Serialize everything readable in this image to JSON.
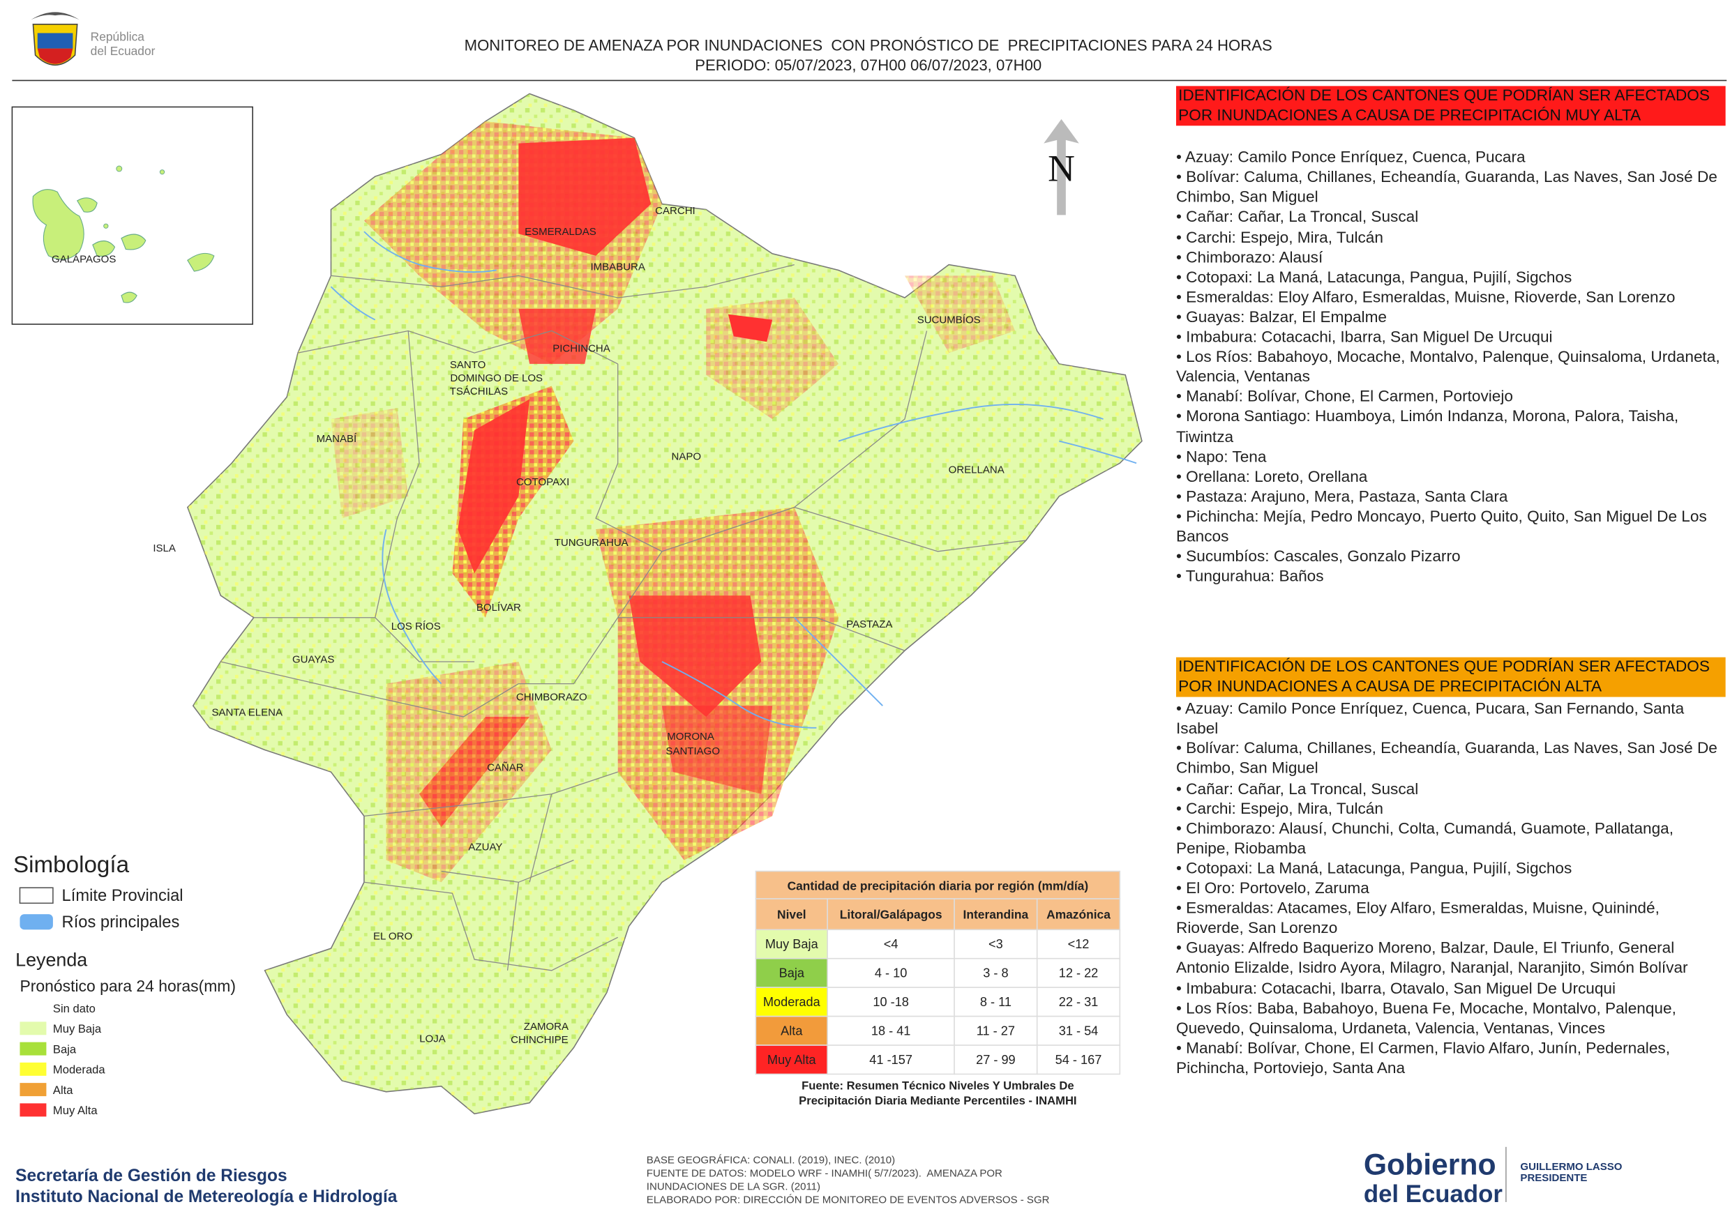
{
  "header": {
    "logo_lines": [
      "República",
      "del Ecuador"
    ],
    "title": "MONITOREO DE AMENAZA POR INUNDACIONES  CON PRONÓSTICO DE  PRECIPITACIONES PARA 24 HORAS",
    "subtitle": "PERIODO: 05/07/2023, 07H00 06/07/2023, 07H00"
  },
  "map": {
    "north": "N",
    "inset_label": "GALÁPAGOS",
    "provinces": {
      "carchi": "CARCHI",
      "esmeraldas": "ESMERALDAS",
      "imbabura": "IMBABURA",
      "sucumbios": "SUCUMBÍOS",
      "pichincha": "PICHINCHA",
      "santo_domingo": [
        "SANTO",
        "DOMINGO DE LOS",
        "TSÁCHILAS"
      ],
      "manabi": "MANABÍ",
      "napo": "NAPO",
      "orellana": "ORELLANA",
      "cotopaxi": "COTOPAXI",
      "isla": "ISLA",
      "tungurahua": "TUNGURAHUA",
      "bolivar": "BOLÍVAR",
      "los_rios": "LOS RÍOS",
      "pastaza": "PASTAZA",
      "guayas": "GUAYAS",
      "chimborazo": "CHIMBORAZO",
      "santa_elena": "SANTA ELENA",
      "morona_santiago": [
        "MORONA",
        "SANTIAGO"
      ],
      "canar": "CAÑAR",
      "azuay": "AZUAY",
      "el_oro": "EL ORO",
      "loja": "LOJA",
      "zamora_chinchipe": [
        "ZAMORA",
        "CHINCHIPE"
      ]
    }
  },
  "legend": {
    "simbologia_title": "Simbología",
    "simbologia_items": [
      "Límite Provincial",
      "Ríos principales"
    ],
    "leyenda_title": "Leyenda",
    "leyenda_subtitle": "Pronóstico para 24 horas(mm)",
    "classes": [
      {
        "label": "Sin dato",
        "color": "#ffffff"
      },
      {
        "label": "Muy Baja",
        "color": "#e3fbad"
      },
      {
        "label": "Baja",
        "color": "#a8e03a"
      },
      {
        "label": "Moderada",
        "color": "#ffff33"
      },
      {
        "label": "Alta",
        "color": "#f0a035"
      },
      {
        "label": "Muy Alta",
        "color": "#ff3131"
      }
    ]
  },
  "table": {
    "title": "Cantidad de precipitación diaria por región (mm/día)",
    "headers": [
      "Nivel",
      "Litoral/Galápagos",
      "Interandina",
      "Amazónica"
    ],
    "rows": [
      {
        "level": "Muy Baja",
        "color": "#e3fbad",
        "values": [
          "<4",
          "<3",
          "<12"
        ]
      },
      {
        "level": "Baja",
        "color": "#8fcf4a",
        "values": [
          "4 - 10",
          "3 - 8",
          "12 - 22"
        ]
      },
      {
        "level": "Moderada",
        "color": "#ffff00",
        "values": [
          "10 -18",
          "8 - 11",
          "22 - 31"
        ]
      },
      {
        "level": "Alta",
        "color": "#f29b3b",
        "values": [
          "18 - 41",
          "11 - 27",
          "31 - 54"
        ]
      },
      {
        "level": "Muy Alta",
        "color": "#ff2424",
        "values": [
          "41 -157",
          "27 - 99",
          "54 - 167"
        ]
      }
    ],
    "source": [
      "Fuente: Resumen Técnico Niveles Y Umbrales De",
      "Precipitación Diaria Mediante Percentiles - INAMHI"
    ]
  },
  "very_high": {
    "heading": "IDENTIFICACIÓN DE LOS CANTONES QUE PODRÍAN SER AFECTADOS POR INUNDACIONES  A CAUSA DE PRECIPITACIÓN MUY ALTA",
    "items": [
      "• Azuay: Camilo Ponce Enríquez, Cuenca, Pucara",
      "• Bolívar: Caluma, Chillanes, Echeandía, Guaranda, Las Naves, San José De Chimbo, San Miguel",
      "• Cañar: Cañar, La Troncal, Suscal",
      "• Carchi: Espejo, Mira, Tulcán",
      "• Chimborazo: Alausí",
      "• Cotopaxi: La Maná, Latacunga, Pangua, Pujilí, Sigchos",
      "• Esmeraldas: Eloy Alfaro, Esmeraldas, Muisne, Rioverde, San Lorenzo",
      "• Guayas: Balzar, El Empalme",
      "• Imbabura: Cotacachi, Ibarra, San Miguel De Urcuqui",
      "• Los Ríos: Babahoyo, Mocache, Montalvo, Palenque, Quinsaloma, Urdaneta, Valencia, Ventanas",
      "• Manabí: Bolívar, Chone, El Carmen, Portoviejo",
      "• Morona Santiago: Huamboya, Limón Indanza, Morona, Palora, Taisha, Tiwintza",
      "• Napo: Tena",
      "• Orellana: Loreto, Orellana",
      "• Pastaza: Arajuno, Mera, Pastaza, Santa Clara",
      "• Pichincha: Mejía, Pedro Moncayo, Puerto Quito, Quito, San Miguel De Los Bancos",
      "• Sucumbíos: Cascales, Gonzalo Pizarro",
      "• Tungurahua: Baños"
    ]
  },
  "high": {
    "heading": "IDENTIFICACIÓN DE LOS CANTONES QUE  PODRÍAN SER AFECTADOS POR INUNDACIONES  A CAUSA DE PRECIPITACIÓN ALTA",
    "items": [
      "• Azuay: Camilo Ponce Enríquez, Cuenca, Pucara, San Fernando, Santa Isabel",
      "• Bolívar: Caluma, Chillanes, Echeandía, Guaranda, Las Naves, San José De Chimbo, San Miguel",
      "• Cañar: Cañar, La Troncal, Suscal",
      "• Carchi: Espejo, Mira, Tulcán",
      "• Chimborazo: Alausí, Chunchi, Colta, Cumandá, Guamote, Pallatanga, Penipe, Riobamba",
      "• Cotopaxi: La Maná, Latacunga, Pangua, Pujilí, Sigchos",
      "• El Oro: Portovelo, Zaruma",
      "• Esmeraldas: Atacames, Eloy Alfaro, Esmeraldas, Muisne, Quinindé, Rioverde, San Lorenzo",
      "• Guayas: Alfredo Baquerizo Moreno, Balzar, Daule, El Triunfo, General Antonio Elizalde, Isidro Ayora, Milagro, Naranjal, Naranjito, Simón Bolívar",
      "• Imbabura: Cotacachi, Ibarra, Otavalo, San Miguel De Urcuqui",
      "• Los Ríos: Baba, Babahoyo, Buena Fe, Mocache, Montalvo, Palenque, Quevedo, Quinsaloma, Urdaneta, Valencia, Ventanas, Vinces",
      "• Manabí: Bolívar, Chone, El Carmen, Flavio Alfaro, Junín, Pedernales, Pichincha, Portoviejo, Santa Ana"
    ]
  },
  "footer": {
    "institutions": [
      "Secretaría de Gestión de Riesgos",
      "Instituto Nacional de Metereología e Hidrología"
    ],
    "credits": [
      "BASE GEOGRÁFICA: CONALI. (2019), INEC. (2010)",
      "FUENTE DE DATOS: MODELO WRF - INAMHI( 5/7/2023).  AMENAZA POR",
      "INUNDACIONES DE LA SGR. (2011)",
      "ELABORADO POR: DIRECCIÓN DE MONITOREO DE EVENTOS ADVERSOS - SGR"
    ],
    "gobierno": [
      "Gobierno",
      "del Ecuador"
    ],
    "president": [
      "GUILLERMO LASSO",
      "PRESIDENTE"
    ]
  }
}
